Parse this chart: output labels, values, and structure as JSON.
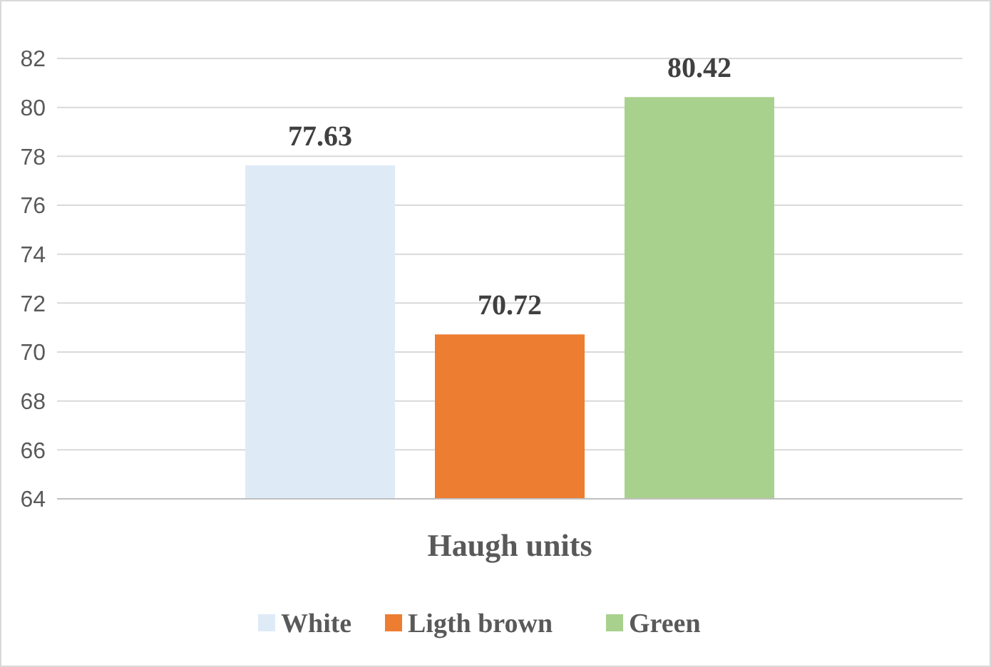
{
  "chart_data": {
    "type": "bar",
    "categories": [
      "Haugh units"
    ],
    "series": [
      {
        "name": "White",
        "color": "#deebf7",
        "values": [
          77.63
        ]
      },
      {
        "name": "Ligth brown",
        "color": "#ed7d31",
        "values": [
          70.72
        ]
      },
      {
        "name": "Green",
        "color": "#a9d18e",
        "values": [
          80.42
        ]
      }
    ],
    "ylim": [
      64,
      82
    ],
    "yticks": [
      64,
      66,
      68,
      70,
      72,
      74,
      76,
      78,
      80,
      82
    ],
    "grid": "y",
    "legend": "bottom",
    "data_labels": true
  }
}
